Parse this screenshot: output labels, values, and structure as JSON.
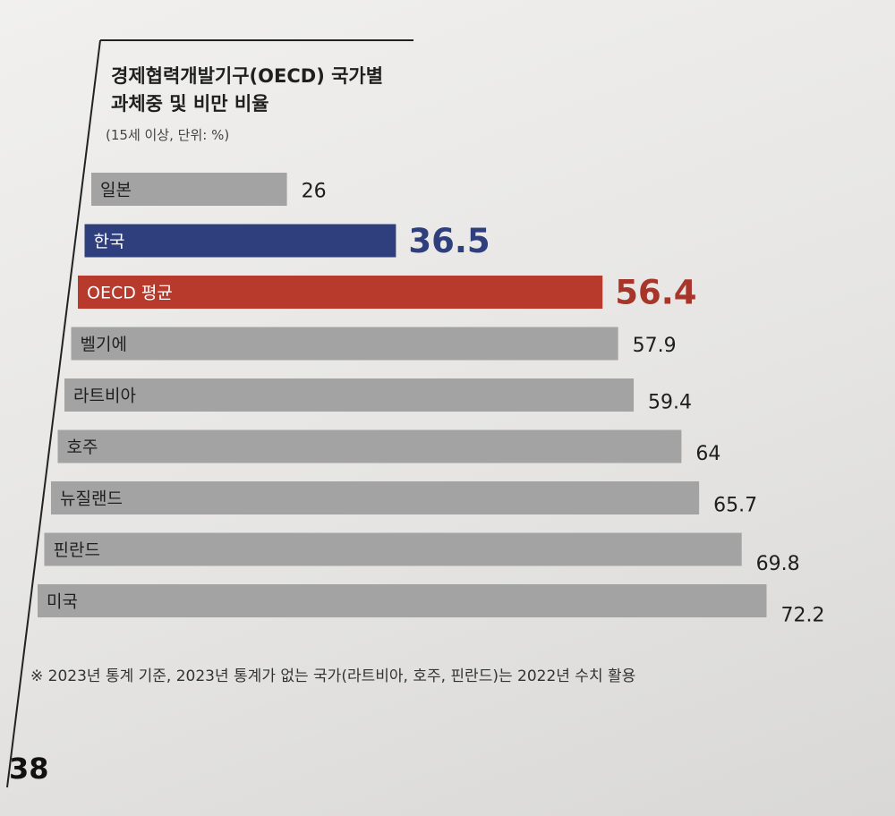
{
  "page": {
    "title_line1": "경제협력개발기구(OECD) 국가별",
    "title_line2": "과체중 및 비만 비율",
    "unit": "(15세 이상, 단위: %)",
    "footnote": "※ 2023년 통계 기준, 2023년 통계가 없는 국가(라트비아, 호주, 핀란드)는 2022년 수치 활용",
    "page_number": "38"
  },
  "colors": {
    "default_bar": "#a3a3a3",
    "korea_bar": "#2f3f7d",
    "oecd_bar": "#b83a2c",
    "korea_value": "#2f3f7d",
    "oecd_value": "#a8352a",
    "default_value": "#1e1e1e"
  },
  "chart_data": {
    "type": "bar",
    "orientation": "horizontal",
    "title": "경제협력개발기구(OECD) 국가별 과체중 및 비만 비율",
    "subtitle": "(15세 이상, 단위: %)",
    "categories": [
      "일본",
      "한국",
      "OECD 평균",
      "벨기에",
      "라트비아",
      "호주",
      "뉴질랜드",
      "핀란드",
      "미국"
    ],
    "values": [
      26,
      36.5,
      56.4,
      57.9,
      59.4,
      64,
      65.7,
      69.8,
      72.2
    ],
    "value_labels": [
      "26",
      "36.5",
      "56.4",
      "57.9",
      "59.4",
      "64",
      "65.7",
      "69.8",
      "72.2"
    ],
    "highlight": {
      "한국": "korea",
      "OECD 평균": "oecd"
    },
    "grid": false,
    "legend": "none"
  }
}
